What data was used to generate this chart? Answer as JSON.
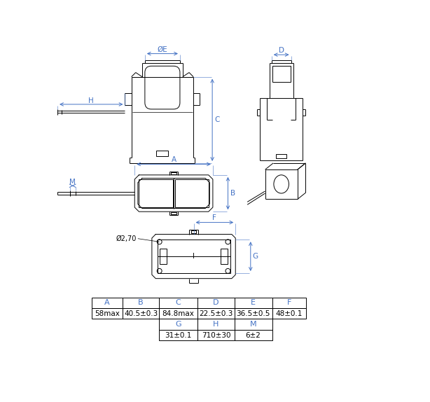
{
  "background": "#ffffff",
  "line_color": "#000000",
  "dim_color": "#4472C4",
  "table": {
    "row1_headers": [
      "A",
      "B",
      "C",
      "D",
      "E",
      "F"
    ],
    "row1_values": [
      "58max",
      "40.5±0.3",
      "84.8max",
      "22.5±0.3",
      "36.5±0.5",
      "48±0.1"
    ],
    "row2_headers": [
      "G",
      "H",
      "M"
    ],
    "row2_values": [
      "31±0.1",
      "710±30",
      "6±2"
    ]
  }
}
